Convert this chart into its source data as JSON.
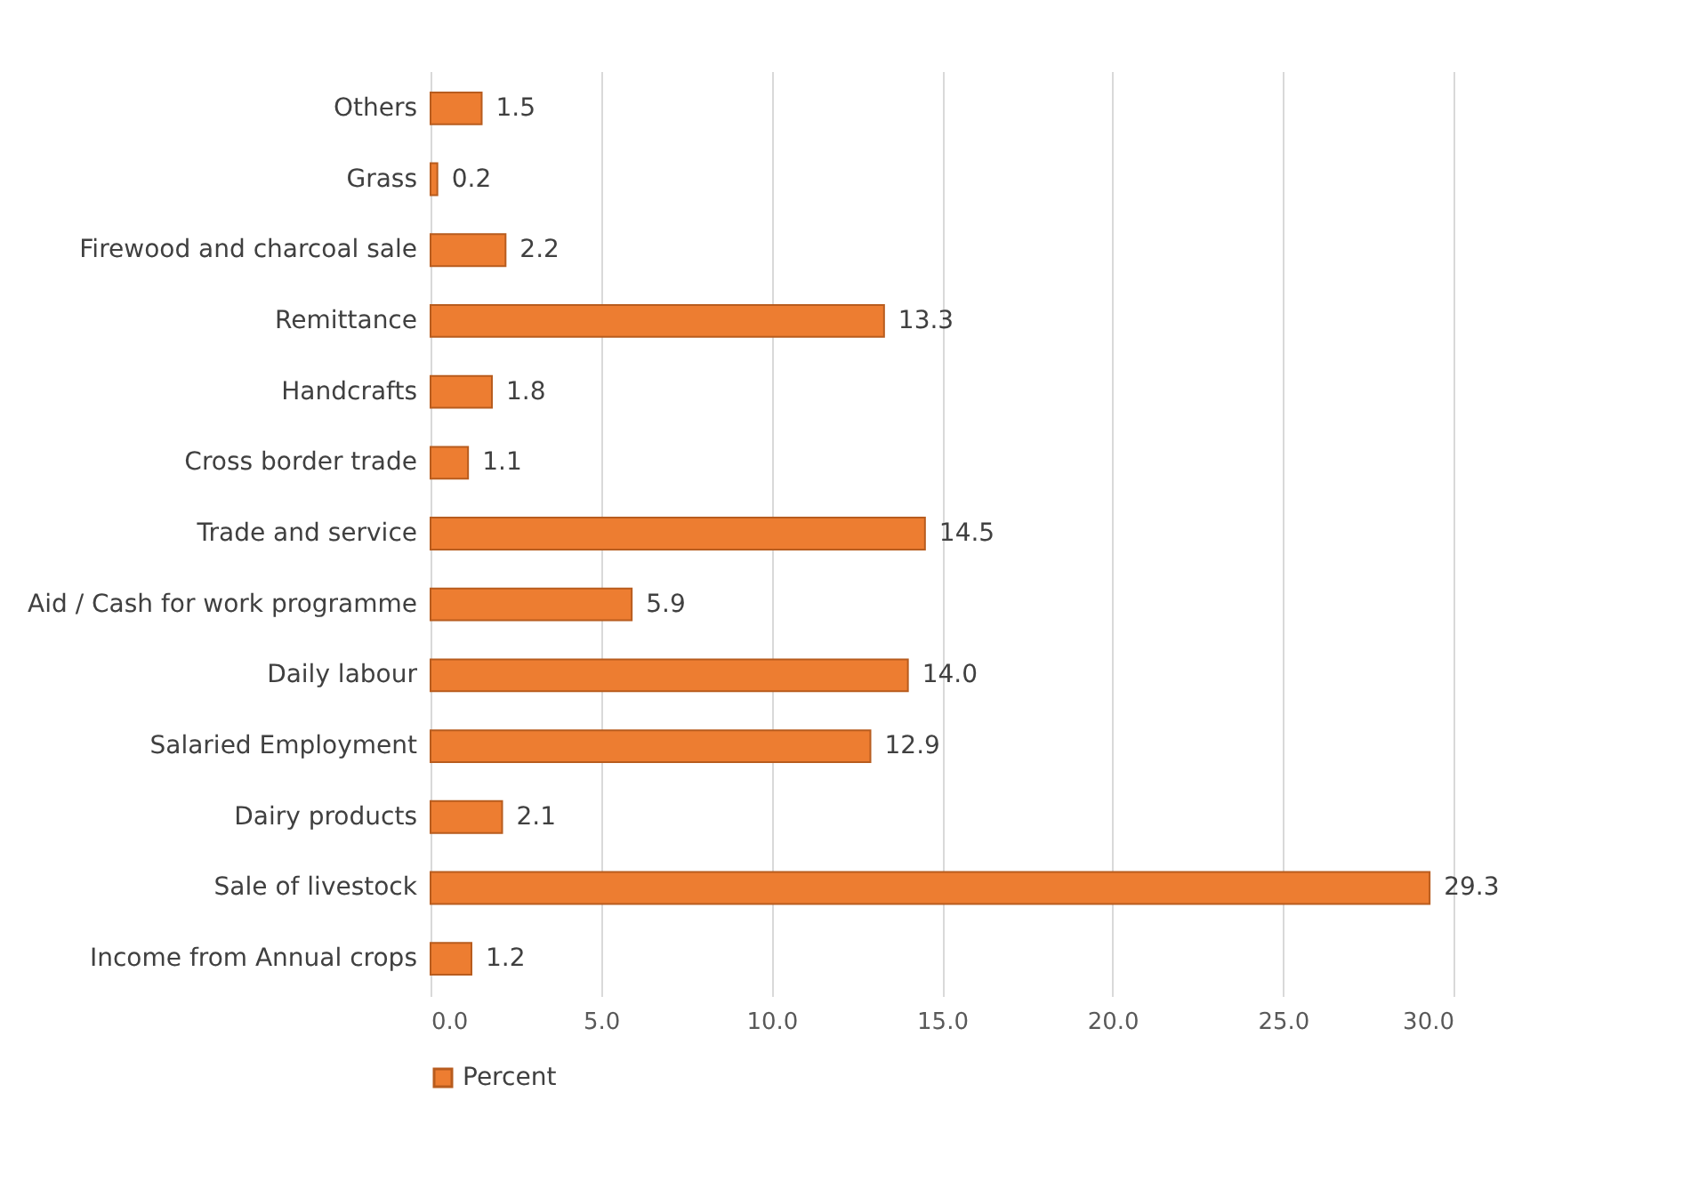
{
  "chart_data": {
    "type": "bar",
    "orientation": "horizontal",
    "categories": [
      "Others",
      "Grass",
      "Firewood and charcoal sale",
      "Remittance",
      "Handcrafts",
      "Cross border trade",
      "Trade and service",
      "Aid / Cash for work programme",
      "Daily labour",
      "Salaried Employment",
      "Dairy products",
      "Sale of livestock",
      "Income from Annual crops"
    ],
    "series": [
      {
        "name": "Percent",
        "color": "#ed7d31",
        "values": [
          1.5,
          0.2,
          2.2,
          13.3,
          1.8,
          1.1,
          14.5,
          5.9,
          14.0,
          12.9,
          2.1,
          29.3,
          1.2
        ],
        "value_labels": [
          "1.5",
          "0.2",
          "2.2",
          "13.3",
          "1.8",
          "1.1",
          "14.5",
          "5.9",
          "14.0",
          "12.9",
          "2.1",
          "29.3",
          "1.2"
        ]
      }
    ],
    "xlim": [
      0,
      30
    ],
    "xticks": [
      {
        "value": 0,
        "label": "0.0"
      },
      {
        "value": 5,
        "label": "5.0"
      },
      {
        "value": 10,
        "label": "10.0"
      },
      {
        "value": 15,
        "label": "15.0"
      },
      {
        "value": 20,
        "label": "20.0"
      },
      {
        "value": 25,
        "label": "25.0"
      },
      {
        "value": 30,
        "label": "30.0"
      }
    ],
    "grid": "x",
    "legend": "bottom"
  }
}
